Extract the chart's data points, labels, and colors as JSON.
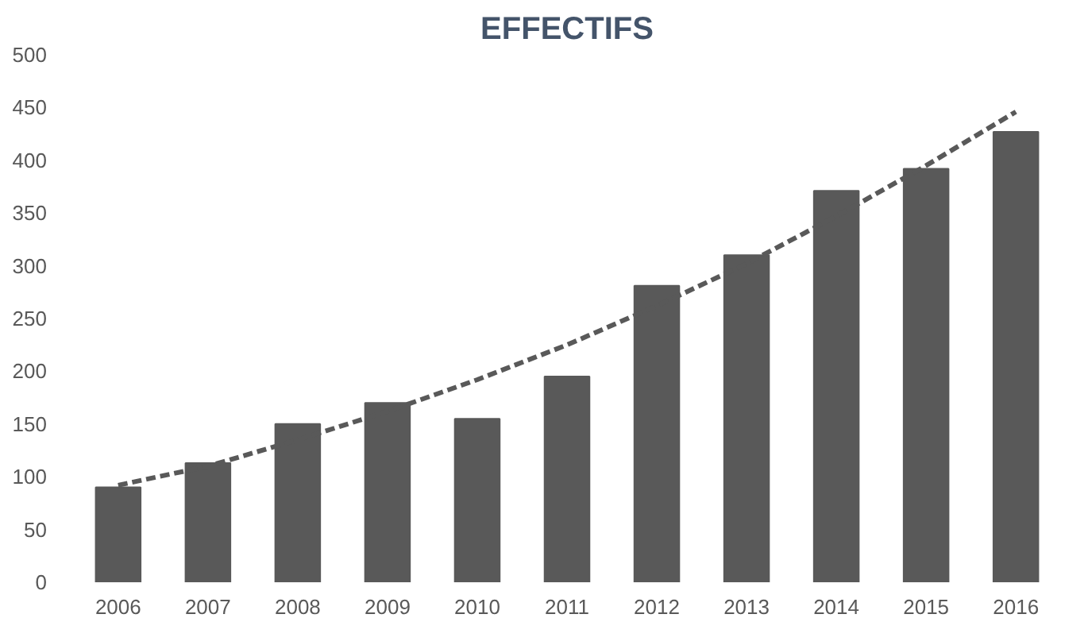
{
  "chart_data": {
    "type": "bar",
    "title": "EFFECTIFS",
    "categories": [
      "2006",
      "2007",
      "2008",
      "2009",
      "2010",
      "2011",
      "2012",
      "2013",
      "2014",
      "2015",
      "2016"
    ],
    "series": [
      {
        "color": "#595959",
        "values": [
          90,
          113,
          150,
          170,
          155,
          195,
          281,
          310,
          371,
          392,
          427
        ]
      },
      {
        "type": "line",
        "line_style": "dashed",
        "color": "#595959",
        "values": [
          92,
          110,
          135,
          162,
          192,
          225,
          262,
          302,
          347,
          395,
          446
        ]
      }
    ],
    "ylim": [
      0,
      500
    ],
    "yticks": [
      0,
      50,
      100,
      150,
      200,
      250,
      300,
      350,
      400,
      450,
      500
    ],
    "grid": false
  }
}
